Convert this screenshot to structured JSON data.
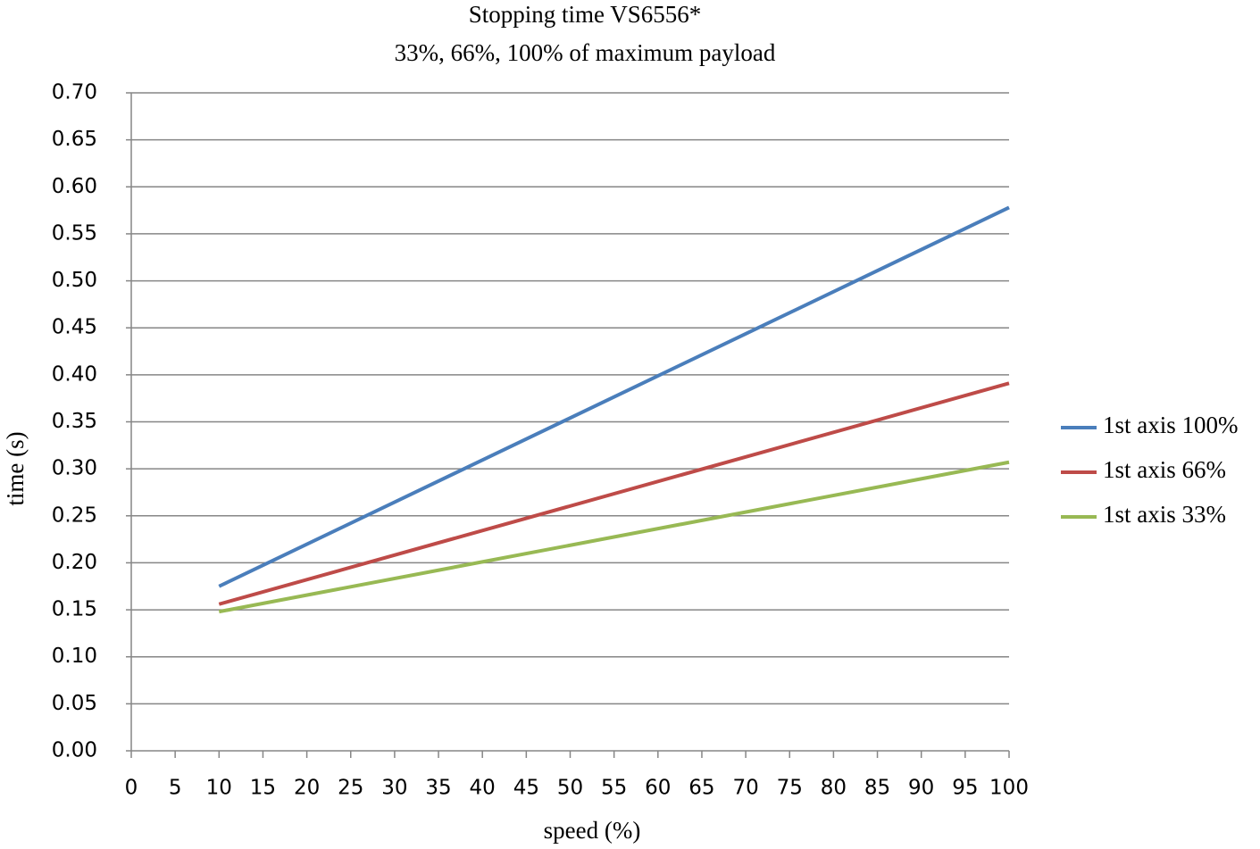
{
  "chart_data": {
    "type": "line",
    "title": "Stopping time VS6556*",
    "subtitle": "33%, 66%, 100% of maximum payload",
    "x_label": "speed (%)",
    "y_label": "time (s)",
    "x": [
      10,
      100
    ],
    "series": [
      {
        "name": "1st axis 100%",
        "color": "#4a7ebb",
        "values": [
          0.175,
          0.578
        ]
      },
      {
        "name": "1st axis 66%",
        "color": "#be4b48",
        "values": [
          0.156,
          0.391
        ]
      },
      {
        "name": "1st axis 33%",
        "color": "#98b954",
        "values": [
          0.148,
          0.307
        ]
      }
    ],
    "xlim": [
      0,
      100
    ],
    "xticks": [
      0,
      5,
      10,
      15,
      20,
      25,
      30,
      35,
      40,
      45,
      50,
      55,
      60,
      65,
      70,
      75,
      80,
      85,
      90,
      95,
      100
    ],
    "ylim": [
      0,
      0.7
    ],
    "yticks": [
      {
        "value": 0,
        "label": "0.00"
      },
      0.05,
      {
        "value": 0.1,
        "label": "0.10"
      },
      0.15,
      {
        "value": 0.2,
        "label": "0.20"
      },
      0.25,
      {
        "value": 0.3,
        "label": "0.30"
      },
      0.35,
      {
        "value": 0.4,
        "label": "0.40"
      },
      0.45,
      {
        "value": 0.5,
        "label": "0.50"
      },
      0.55,
      {
        "value": 0.6,
        "label": "0.60"
      },
      0.65,
      {
        "value": 0.7,
        "label": "0.70"
      }
    ],
    "grid": true,
    "legend": "right"
  }
}
